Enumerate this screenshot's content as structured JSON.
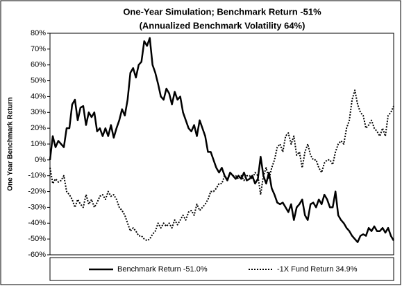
{
  "chart_data": {
    "type": "line",
    "title": "One-Year Simulation; Benchmark Return -51%",
    "subtitle": "(Annualized Benchmark Volatility 64%)",
    "ylabel": "One Year Benchmark Return",
    "ylim": [
      -60,
      80
    ],
    "yticks": [
      {
        "value": -60,
        "label": "-60%"
      },
      {
        "value": -50,
        "label": "-50%"
      },
      {
        "value": -40,
        "label": "-40%"
      },
      {
        "value": -30,
        "label": "-30%"
      },
      {
        "value": -20,
        "label": "-20%"
      },
      {
        "value": -10,
        "label": "-10%"
      },
      {
        "value": 0,
        "label": "0%"
      },
      {
        "value": 10,
        "label": "10%"
      },
      {
        "value": 20,
        "label": "20%"
      },
      {
        "value": 30,
        "label": "30%"
      },
      {
        "value": 40,
        "label": "40%"
      },
      {
        "value": 50,
        "label": "50%"
      },
      {
        "value": 60,
        "label": "60%"
      },
      {
        "value": 70,
        "label": "70%"
      },
      {
        "value": 80,
        "label": "80%"
      }
    ],
    "grid": false,
    "legend": "bottom",
    "series": [
      {
        "name": "Benchmark Return -51.0%",
        "color": "#000000",
        "dash": "solid",
        "values": [
          0,
          15,
          8,
          12,
          10,
          8,
          20,
          20,
          35,
          38,
          25,
          33,
          34,
          22,
          30,
          27,
          30,
          18,
          20,
          15,
          20,
          15,
          22,
          14,
          20,
          25,
          32,
          28,
          38,
          55,
          58,
          52,
          60,
          62,
          75,
          72,
          77,
          60,
          55,
          48,
          40,
          38,
          45,
          42,
          35,
          43,
          38,
          40,
          30,
          25,
          20,
          18,
          22,
          15,
          25,
          20,
          15,
          5,
          5,
          0,
          -5,
          -8,
          -5,
          -10,
          -13,
          -8,
          -10,
          -12,
          -10,
          -12,
          -8,
          -13,
          -12,
          -10,
          -15,
          -12,
          2,
          -10,
          -15,
          -8,
          -18,
          -22,
          -27,
          -28,
          -27,
          -30,
          -33,
          -28,
          -38,
          -30,
          -28,
          -25,
          -35,
          -38,
          -28,
          -27,
          -30,
          -25,
          -28,
          -22,
          -25,
          -30,
          -30,
          -20,
          -35,
          -38,
          -40,
          -43,
          -45,
          -48,
          -50,
          -52,
          -48,
          -47,
          -48,
          -43,
          -45,
          -42,
          -45,
          -45,
          -43,
          -46,
          -43,
          -48,
          -51
        ]
      },
      {
        "name": "-1X Fund Return 34.9%",
        "color": "#000000",
        "dash": "dotted",
        "values": [
          -5,
          -15,
          -12,
          -14,
          -13,
          -10,
          -20,
          -22,
          -25,
          -30,
          -25,
          -28,
          -30,
          -22,
          -28,
          -25,
          -30,
          -27,
          -23,
          -22,
          -25,
          -20,
          -23,
          -22,
          -25,
          -30,
          -32,
          -35,
          -40,
          -45,
          -43,
          -45,
          -48,
          -48,
          -50,
          -51,
          -50,
          -47,
          -45,
          -40,
          -43,
          -40,
          -42,
          -40,
          -43,
          -38,
          -41,
          -38,
          -35,
          -38,
          -33,
          -32,
          -35,
          -28,
          -32,
          -30,
          -28,
          -25,
          -20,
          -20,
          -18,
          -15,
          -15,
          -10,
          -12,
          -8,
          -10,
          -10,
          -12,
          -10,
          -13,
          -10,
          -10,
          -12,
          -8,
          -10,
          -22,
          -10,
          -5,
          -12,
          -5,
          0,
          8,
          10,
          5,
          15,
          17,
          10,
          15,
          3,
          5,
          -5,
          5,
          10,
          3,
          0,
          0,
          -5,
          -8,
          -2,
          0,
          0,
          -3,
          5,
          10,
          12,
          10,
          20,
          25,
          38,
          44,
          35,
          30,
          28,
          20,
          22,
          25,
          20,
          18,
          15,
          20,
          15,
          28,
          30,
          34
        ]
      }
    ]
  }
}
